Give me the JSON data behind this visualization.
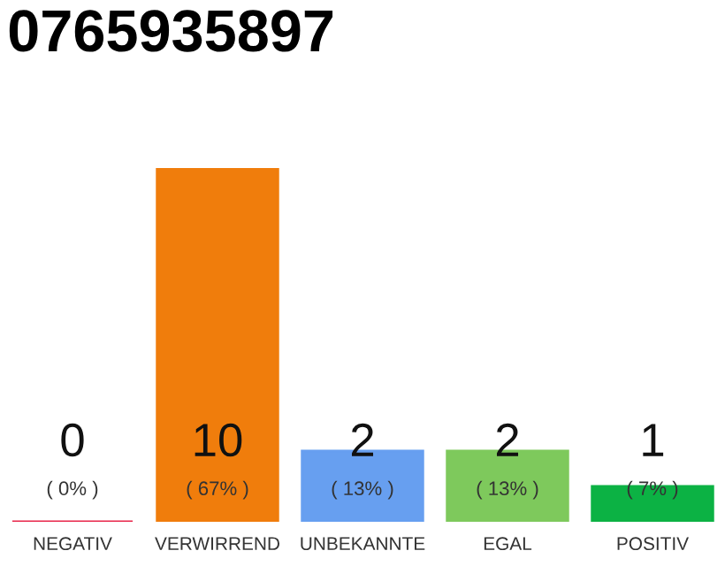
{
  "chart_data": {
    "type": "bar",
    "title": "0765935897",
    "categories": [
      "NEGATIV",
      "VERWIRREND",
      "UNBEKANNTE",
      "EGAL",
      "POSITIV"
    ],
    "values": [
      0,
      10,
      2,
      2,
      1
    ],
    "colors": [
      "#e8264a",
      "#f07d0c",
      "#679ff0",
      "#7ec95c",
      "#0cb244"
    ],
    "value_labels": [
      "0\n( 0% )",
      "10\n( 67% )",
      "2\n( 13% )",
      "2\n( 13% )",
      "1\n( 7% )"
    ],
    "grid": false,
    "legend": false
  }
}
